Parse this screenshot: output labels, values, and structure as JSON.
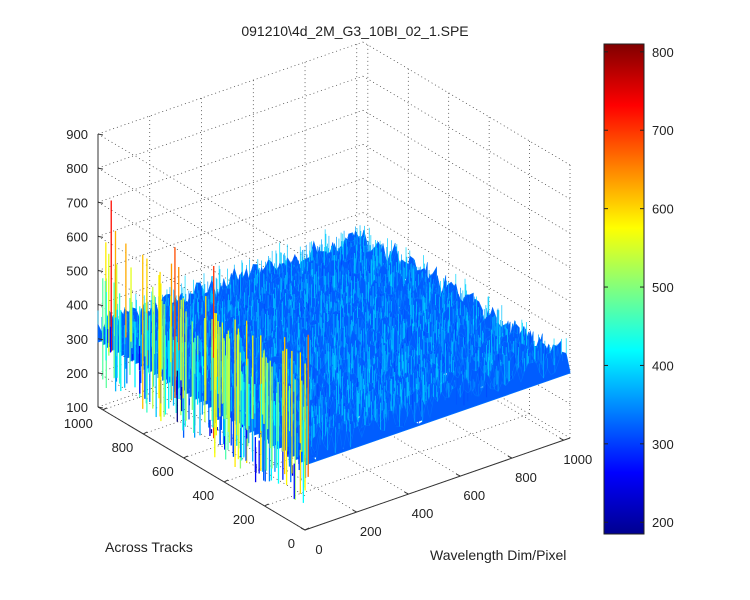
{
  "chart_data": {
    "type": "surface3d",
    "title": "091210\\4d_2M_G3_10BI_02_1.SPE",
    "xlabel": "Wavelength Dim/Pixel",
    "ylabel": "Across Tracks",
    "zlabel": "",
    "x_ticks": [
      "0",
      "200",
      "400",
      "600",
      "800",
      "1000"
    ],
    "y_ticks": [
      "0",
      "200",
      "400",
      "600",
      "800",
      "1000"
    ],
    "z_ticks": [
      "100",
      "200",
      "300",
      "400",
      "500",
      "600",
      "700",
      "800",
      "900"
    ],
    "xlim": [
      0,
      1024
    ],
    "ylim": [
      0,
      1024
    ],
    "zlim": [
      100,
      900
    ],
    "grid": true,
    "colormap": "jet",
    "colorbar": {
      "range": [
        185,
        810
      ],
      "ticks": [
        "200",
        "300",
        "400",
        "500",
        "600",
        "700",
        "800"
      ],
      "position": "right"
    },
    "surface": {
      "baseline_level": 330,
      "noise_amplitude": 40,
      "spike_region": "low wavelength pixels (0–30) along all tracks",
      "spike_range": [
        150,
        750
      ]
    }
  }
}
